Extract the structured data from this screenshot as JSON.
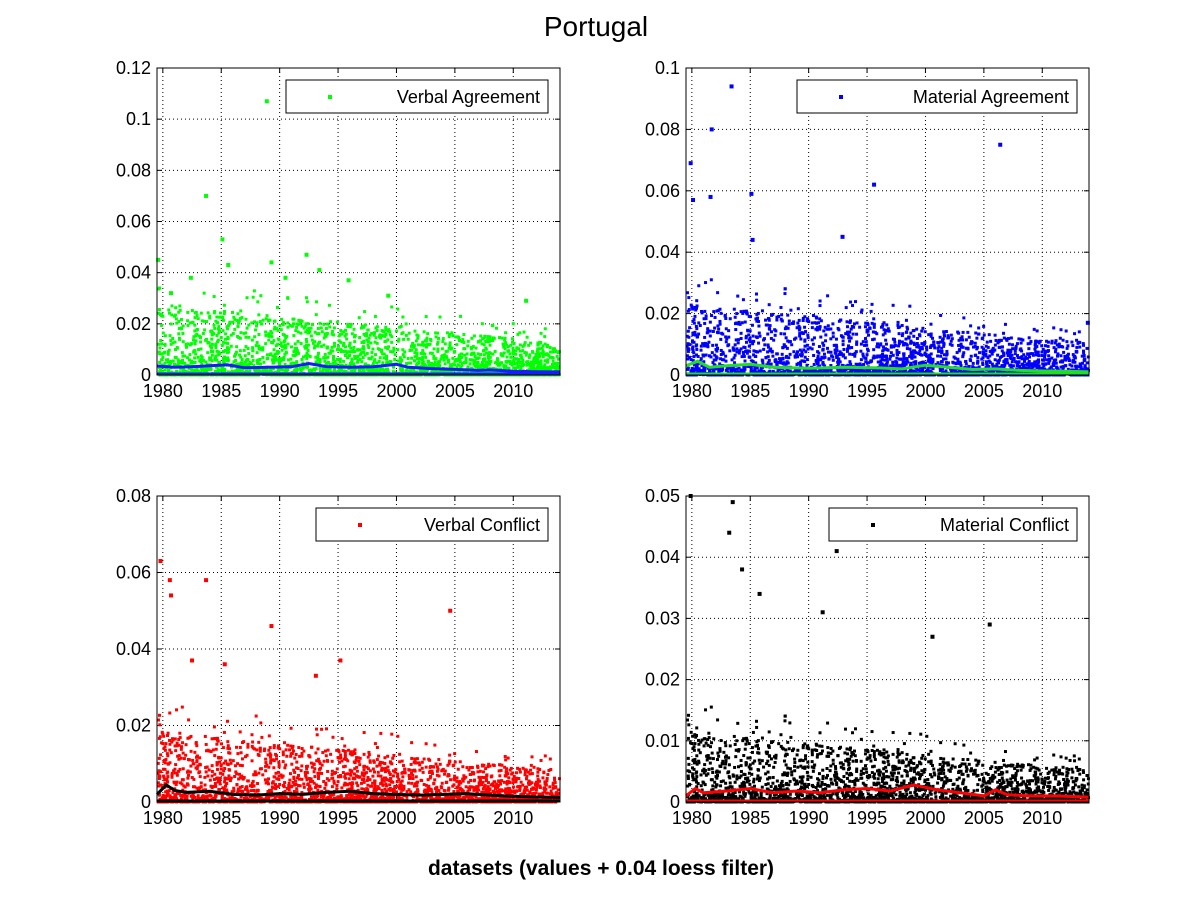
{
  "figure": {
    "title": "Portugal",
    "xlabel": "datasets (values + 0.04 loess filter)"
  },
  "chart_data": [
    {
      "type": "scatter",
      "title": "",
      "xlabel": "",
      "ylabel": "",
      "xlim": [
        1979.5,
        2014
      ],
      "ylim": [
        0,
        0.12
      ],
      "xticks": [
        "1980",
        "1985",
        "1990",
        "1995",
        "2000",
        "2005",
        "2010"
      ],
      "yticks": [
        "0",
        "0.02",
        "0.04",
        "0.06",
        "0.08",
        "0.1",
        "0.12"
      ],
      "grid": true,
      "legend": "top-right",
      "series": [
        {
          "name": "Verbal Agreement",
          "color": "#00ff00",
          "marker": "dot",
          "mode": "markers",
          "note": "dense daily scatter, mostly 0.000-0.020 with outliers",
          "outliers": [
            [
              1979.6,
              0.045
            ],
            [
              1980.7,
              0.032
            ],
            [
              1982.4,
              0.038
            ],
            [
              1983.7,
              0.07
            ],
            [
              1985.1,
              0.053
            ],
            [
              1985.6,
              0.043
            ],
            [
              1988.9,
              0.107
            ],
            [
              1989.3,
              0.044
            ],
            [
              1990.5,
              0.038
            ],
            [
              1992.3,
              0.047
            ],
            [
              1993.4,
              0.041
            ],
            [
              1995.9,
              0.037
            ],
            [
              1999.3,
              0.031
            ],
            [
              2011.1,
              0.029
            ]
          ]
        },
        {
          "name": "",
          "color": "#1a1aff",
          "mode": "line",
          "x": [
            1979.5,
            1981,
            1982.5,
            1984,
            1985.5,
            1987,
            1989,
            1991,
            1992.5,
            1994,
            1996,
            1998,
            2000,
            2001,
            2003,
            2005,
            2007,
            2008,
            2010,
            2012,
            2014
          ],
          "y": [
            0.0035,
            0.003,
            0.0032,
            0.0036,
            0.004,
            0.0028,
            0.003,
            0.0032,
            0.0045,
            0.0033,
            0.003,
            0.0032,
            0.0042,
            0.003,
            0.0025,
            0.0022,
            0.0018,
            0.002,
            0.0015,
            0.0013,
            0.0012
          ]
        }
      ]
    },
    {
      "type": "scatter",
      "title": "",
      "xlabel": "",
      "ylabel": "",
      "xlim": [
        1979.5,
        2014
      ],
      "ylim": [
        0,
        0.1
      ],
      "xticks": [
        "1980",
        "1985",
        "1990",
        "1995",
        "2000",
        "2005",
        "2010"
      ],
      "yticks": [
        "0",
        "0.02",
        "0.04",
        "0.06",
        "0.08",
        "0.1"
      ],
      "grid": true,
      "legend": "top-right",
      "series": [
        {
          "name": "Material Agreement",
          "color": "#0000ff",
          "marker": "dot",
          "mode": "markers",
          "note": "dense daily scatter, mostly 0.000-0.025 with outliers",
          "outliers": [
            [
              1979.9,
              0.069
            ],
            [
              1980.1,
              0.057
            ],
            [
              1981.7,
              0.08
            ],
            [
              1981.6,
              0.058
            ],
            [
              1983.4,
              0.094
            ],
            [
              1985.1,
              0.059
            ],
            [
              1985.2,
              0.044
            ],
            [
              1992.9,
              0.045
            ],
            [
              1995.6,
              0.062
            ],
            [
              2006.4,
              0.075
            ],
            [
              2013.9,
              0.017
            ]
          ]
        },
        {
          "name": "",
          "color": "#22dd22",
          "mode": "line",
          "x": [
            1979.5,
            1980.5,
            1981.5,
            1983,
            1985,
            1987,
            1990,
            1993,
            1996,
            1998,
            2000,
            2002,
            2004,
            2006,
            2008,
            2010,
            2012,
            2014
          ],
          "y": [
            0.003,
            0.0045,
            0.0025,
            0.003,
            0.0035,
            0.0025,
            0.0022,
            0.0025,
            0.0023,
            0.002,
            0.0032,
            0.0025,
            0.0018,
            0.002,
            0.0015,
            0.0013,
            0.0012,
            0.001
          ]
        }
      ]
    },
    {
      "type": "scatter",
      "title": "",
      "xlabel": "",
      "ylabel": "",
      "xlim": [
        1979.5,
        2014
      ],
      "ylim": [
        0,
        0.08
      ],
      "xticks": [
        "1980",
        "1985",
        "1990",
        "1995",
        "2000",
        "2005",
        "2010"
      ],
      "yticks": [
        "0",
        "0.02",
        "0.04",
        "0.06",
        "0.08"
      ],
      "grid": true,
      "legend": "top-right",
      "series": [
        {
          "name": "Verbal Conflict",
          "color": "#ff0000",
          "marker": "dot",
          "mode": "markers",
          "note": "dense daily scatter, mostly 0.000-0.020 with outliers",
          "outliers": [
            [
              1979.8,
              0.063
            ],
            [
              1980.6,
              0.058
            ],
            [
              1980.7,
              0.054
            ],
            [
              1982.5,
              0.037
            ],
            [
              1983.7,
              0.058
            ],
            [
              1985.3,
              0.036
            ],
            [
              1989.3,
              0.046
            ],
            [
              1993.1,
              0.033
            ],
            [
              1995.2,
              0.037
            ],
            [
              2004.6,
              0.05
            ]
          ]
        },
        {
          "name": "",
          "color": "#000000",
          "mode": "line",
          "x": [
            1979.5,
            1980.3,
            1981,
            1982,
            1984,
            1986,
            1988,
            1990,
            1992,
            1994,
            1996,
            1998,
            2000,
            2002,
            2004,
            2006,
            2008,
            2010,
            2012,
            2014
          ],
          "y": [
            0.002,
            0.0045,
            0.003,
            0.0025,
            0.0028,
            0.002,
            0.0018,
            0.0022,
            0.002,
            0.0025,
            0.0028,
            0.0022,
            0.002,
            0.0018,
            0.002,
            0.0022,
            0.0018,
            0.0015,
            0.0013,
            0.0012
          ]
        }
      ]
    },
    {
      "type": "scatter",
      "title": "",
      "xlabel": "",
      "ylabel": "",
      "xlim": [
        1979.5,
        2014
      ],
      "ylim": [
        0,
        0.05
      ],
      "xticks": [
        "1980",
        "1985",
        "1990",
        "1995",
        "2000",
        "2005",
        "2010"
      ],
      "yticks": [
        "0",
        "0.01",
        "0.02",
        "0.03",
        "0.04",
        "0.05"
      ],
      "grid": true,
      "legend": "top-right",
      "series": [
        {
          "name": "Material Conflict",
          "color": "#000000",
          "marker": "dot",
          "mode": "markers",
          "note": "dense daily scatter, mostly 0.000-0.020 with outliers",
          "outliers": [
            [
              1979.9,
              0.05
            ],
            [
              1983.2,
              0.044
            ],
            [
              1983.5,
              0.049
            ],
            [
              1984.3,
              0.038
            ],
            [
              1985.8,
              0.034
            ],
            [
              1991.2,
              0.031
            ],
            [
              1992.4,
              0.041
            ],
            [
              2000.6,
              0.027
            ],
            [
              2005.5,
              0.029
            ]
          ]
        },
        {
          "name": "",
          "color": "#ff0000",
          "mode": "line",
          "x": [
            1979.5,
            1980.3,
            1981,
            1983,
            1985,
            1987,
            1989,
            1991,
            1993,
            1995,
            1997,
            1999,
            2001,
            2003,
            2005,
            2006,
            2007,
            2009,
            2011,
            2014
          ],
          "y": [
            0.001,
            0.0022,
            0.0015,
            0.0018,
            0.0022,
            0.0015,
            0.0018,
            0.0015,
            0.002,
            0.0022,
            0.0018,
            0.0028,
            0.002,
            0.0015,
            0.001,
            0.002,
            0.0012,
            0.001,
            0.001,
            0.0008
          ]
        }
      ]
    }
  ]
}
